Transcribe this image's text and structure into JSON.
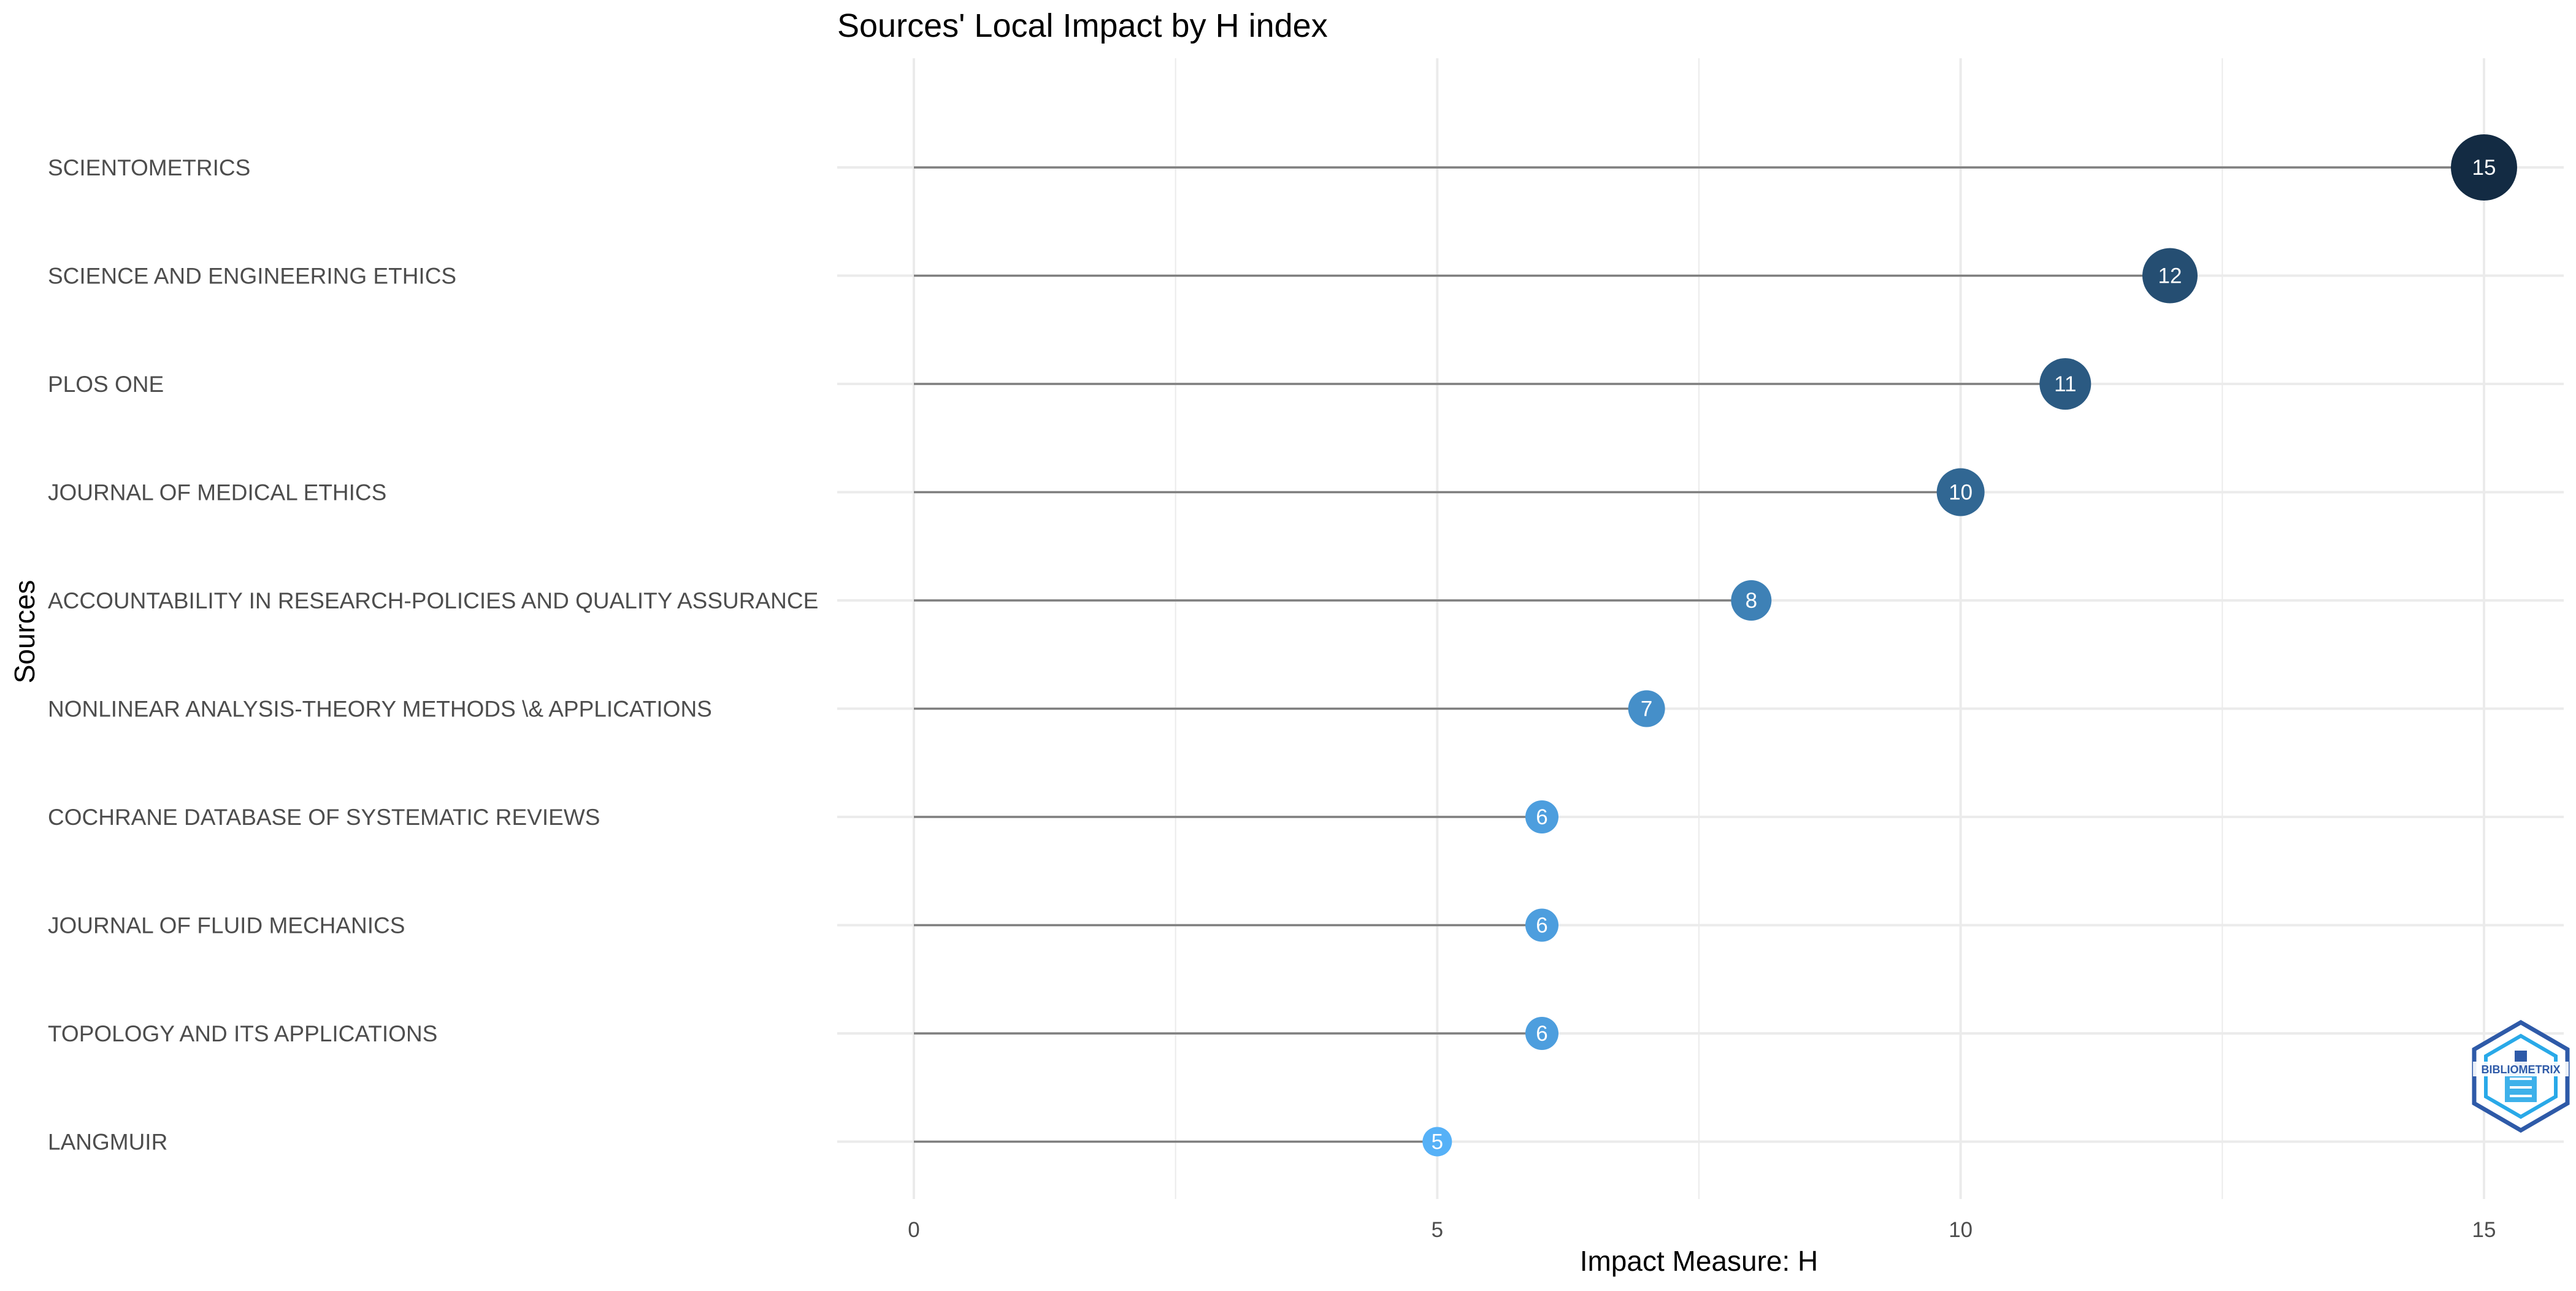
{
  "chart_data": {
    "type": "lollipop",
    "title": "Sources' Local Impact by H index",
    "xlabel": "Impact Measure: H",
    "ylabel": "Sources",
    "xlim": [
      0,
      15
    ],
    "x_ticks": [
      0,
      5,
      10,
      15
    ],
    "grid": true,
    "legend": "none",
    "categories": [
      "SCIENTOMETRICS",
      "SCIENCE AND ENGINEERING ETHICS",
      "PLOS ONE",
      "JOURNAL OF MEDICAL ETHICS",
      "ACCOUNTABILITY IN RESEARCH-POLICIES AND QUALITY ASSURANCE",
      "NONLINEAR ANALYSIS-THEORY METHODS \\& APPLICATIONS",
      "COCHRANE DATABASE OF SYSTEMATIC REVIEWS",
      "JOURNAL OF FLUID MECHANICS",
      "TOPOLOGY AND ITS APPLICATIONS",
      "LANGMUIR"
    ],
    "values": [
      15,
      12,
      11,
      10,
      8,
      7,
      6,
      6,
      6,
      5
    ],
    "color_scale": {
      "low": "#56B1F7",
      "high": "#132B43"
    },
    "stem_color": "#7f7f7f",
    "grid_color": "#ebebeb"
  },
  "watermark": {
    "text": "BIBLIOMETRIX",
    "colors": [
      "#2e5aa8",
      "#29a9e8"
    ]
  }
}
